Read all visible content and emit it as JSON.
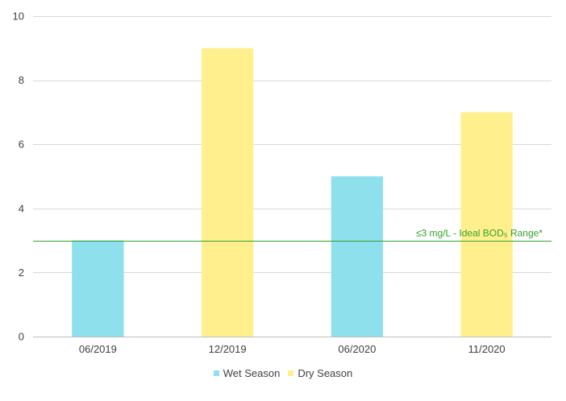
{
  "chart_data": {
    "type": "bar",
    "categories": [
      "06/2019",
      "12/2019",
      "06/2020",
      "11/2020"
    ],
    "values": [
      3,
      9,
      5,
      7
    ],
    "bar_season": [
      "wet",
      "dry",
      "wet",
      "dry"
    ],
    "ylim": [
      0,
      10
    ],
    "yticks": [
      0,
      2,
      4,
      6,
      8,
      10
    ],
    "grid": true,
    "legend_position": "bottom-center",
    "legend": [
      {
        "key": "wet",
        "name": "Wet Season",
        "color": "#8de0ec"
      },
      {
        "key": "dry",
        "name": "Dry Season",
        "color": "#fff08d"
      }
    ],
    "reference_line": {
      "value": 3,
      "label": "≤3 mg/L - Ideal BOD₅ Range*",
      "color": "#33a02c"
    },
    "colors": {
      "grid": "#d9d9d9",
      "axis": "#bfbfbf",
      "text": "#404040"
    }
  }
}
